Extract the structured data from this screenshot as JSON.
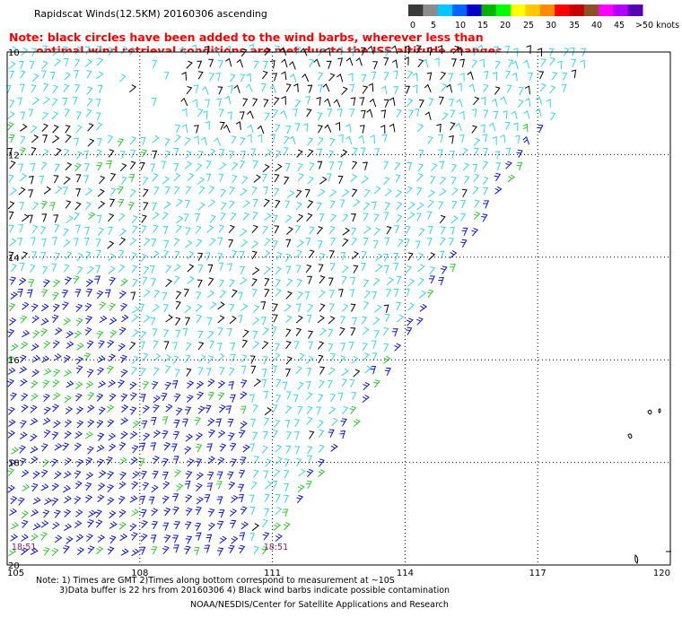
{
  "header": {
    "title": "Rapidscat Winds(12.5KM) 20160306 ascending",
    "note_line1": "Note: black circles have been added to the wind barbs, wherever less than",
    "note_line2": "optimal wind retrieval conditions are met due to the ISS altitude changes."
  },
  "colorbar": {
    "labels": [
      "0",
      "5",
      "10",
      "15",
      "20",
      "25",
      "30",
      "35",
      "40",
      "45",
      ">50 knots"
    ],
    "colors": [
      "#3a3a3a",
      "#8c8c8c",
      "#00c8ff",
      "#0064ff",
      "#0000c8",
      "#00b400",
      "#00ff00",
      "#ffff00",
      "#ffc800",
      "#ff8c00",
      "#ff0000",
      "#c80000",
      "#8c5028",
      "#ff00ff",
      "#b400ff",
      "#5a00b4"
    ]
  },
  "map": {
    "lon_ticks": [
      "105",
      "108",
      "111",
      "114",
      "117",
      "120"
    ],
    "lat_ticks": [
      "10",
      "12",
      "14",
      "16",
      "18",
      "20"
    ],
    "time_labels": [
      {
        "text": "18:51",
        "lon": 105.1,
        "lat": 19.7
      },
      {
        "text": "18:51",
        "lon": 110.8,
        "lat": 19.7
      }
    ],
    "barb_colors": {
      "black": "#000000",
      "cyan": "#33d6e6",
      "blue": "#0a14c8",
      "green": "#2ec82e"
    }
  },
  "footer": {
    "line1": "Note: 1) Times are GMT 2)Times along bottom correspond to measurement at ~10S",
    "line2": "3)Data buffer is 22 hrs from 20160306 4) Black wind barbs indicate possible contamination",
    "line3": "NOAA/NESDIS/Center for Satellite Applications and Research"
  }
}
